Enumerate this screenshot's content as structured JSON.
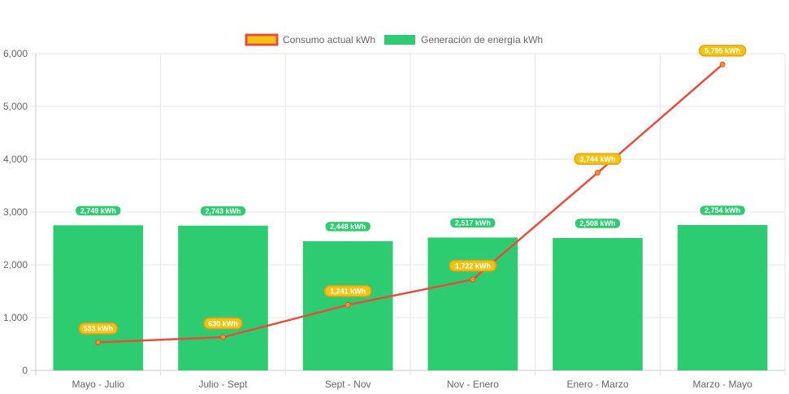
{
  "chart_data": {
    "type": "bar",
    "categories": [
      "Mayo - Julio",
      "Julio - Sept",
      "Sept - Nov",
      "Nov - Enero",
      "Enero - Marzo",
      "Marzo - Mayo"
    ],
    "series": [
      {
        "name": "Consumo actual kWh",
        "type": "line",
        "values": [
          533,
          630,
          1241,
          1722,
          3744,
          5795
        ],
        "labels": [
          "533 kWh",
          "630 kWh",
          "1,241 kWh",
          "1,722 kWh",
          "3,744 kWh",
          "5,795 kWh"
        ],
        "color": "#e74c3c",
        "label_color": "#f1c40f",
        "point_color": "#f39c12"
      },
      {
        "name": "Generación de energía kWh",
        "type": "bar",
        "values": [
          2749,
          2743,
          2448,
          2517,
          2508,
          2754
        ],
        "labels": [
          "2,749 kWh",
          "2,743 kWh",
          "2,448 kWh",
          "2,517 kWh",
          "2,508 kWh",
          "2,754 kWh"
        ],
        "color": "#2ecc71"
      }
    ],
    "yticks": [
      "0",
      "1,000",
      "2,000",
      "3,000",
      "4,000",
      "5,000",
      "6,000"
    ],
    "ylim": [
      0,
      6000
    ],
    "grid": true,
    "legend": "top-center"
  }
}
